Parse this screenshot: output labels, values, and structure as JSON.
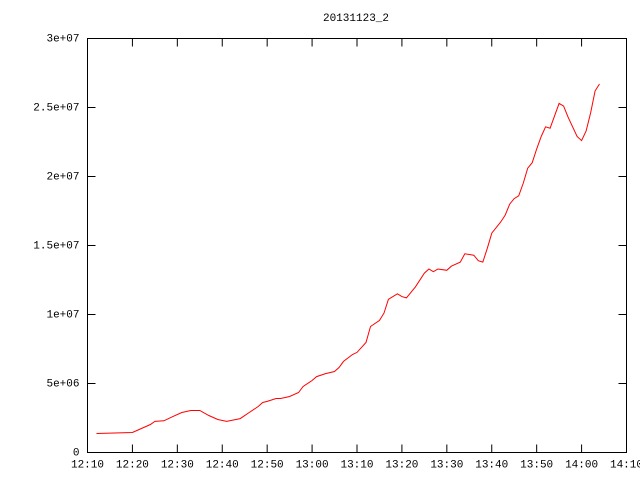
{
  "chart_data": {
    "type": "line",
    "title": "20131123_2",
    "x": [
      "12:12",
      "12:20",
      "12:22",
      "12:24",
      "12:25",
      "12:27",
      "12:29",
      "12:31",
      "12:33",
      "12:35",
      "12:37",
      "12:39",
      "12:41",
      "12:44",
      "12:46",
      "12:48",
      "12:49",
      "12:50",
      "12:52",
      "12:53",
      "12:55",
      "12:57",
      "12:58",
      "13:00",
      "13:01",
      "13:03",
      "13:05",
      "13:06",
      "13:07",
      "13:09",
      "13:10",
      "13:12",
      "13:13",
      "13:15",
      "13:16",
      "13:17",
      "13:19",
      "13:20",
      "13:21",
      "13:23",
      "13:25",
      "13:26",
      "13:27",
      "13:28",
      "13:30",
      "13:31",
      "13:33",
      "13:34",
      "13:36",
      "13:37",
      "13:38",
      "13:39",
      "13:40",
      "13:42",
      "13:43",
      "13:44",
      "13:45",
      "13:46",
      "13:47",
      "13:48",
      "13:49",
      "13:50",
      "13:51",
      "13:52",
      "13:53",
      "13:54",
      "13:55",
      "13:56",
      "13:57",
      "13:58",
      "13:59",
      "14:00",
      "14:01",
      "14:02",
      "14:03",
      "14:04"
    ],
    "series": [
      {
        "color": "#ff0000",
        "values": [
          1380000,
          1450000,
          1740000,
          2030000,
          2250000,
          2300000,
          2600000,
          2900000,
          3040000,
          3040000,
          2680000,
          2390000,
          2250000,
          2460000,
          2900000,
          3330000,
          3620000,
          3700000,
          3910000,
          3910000,
          4060000,
          4350000,
          4780000,
          5220000,
          5500000,
          5720000,
          5870000,
          6160000,
          6600000,
          7100000,
          7250000,
          7970000,
          9130000,
          9570000,
          10100000,
          11100000,
          11500000,
          11300000,
          11200000,
          12000000,
          13000000,
          13300000,
          13100000,
          13300000,
          13200000,
          13500000,
          13800000,
          14400000,
          14300000,
          13900000,
          13800000,
          14800000,
          15900000,
          16700000,
          17200000,
          18000000,
          18400000,
          18600000,
          19500000,
          20600000,
          21000000,
          22000000,
          22900000,
          23600000,
          23500000,
          24400000,
          25300000,
          25100000,
          24300000,
          23600000,
          22900000,
          22600000,
          23300000,
          24600000,
          26200000,
          26700000
        ]
      }
    ],
    "xlim": [
      "12:10",
      "14:10"
    ],
    "xticks": [
      "12:10",
      "12:20",
      "12:30",
      "12:40",
      "12:50",
      "13:00",
      "13:10",
      "13:20",
      "13:30",
      "13:40",
      "13:50",
      "14:00",
      "14:10"
    ],
    "ylim": [
      0,
      30000000
    ],
    "yticks": [
      0,
      {
        "value": 5000000,
        "label": "5e+06"
      },
      {
        "value": 10000000,
        "label": "1e+07"
      },
      {
        "value": 15000000,
        "label": "1.5e+07"
      },
      {
        "value": 20000000,
        "label": "2e+07"
      },
      {
        "value": 25000000,
        "label": "2.5e+07"
      },
      {
        "value": 30000000,
        "label": "3e+07"
      }
    ]
  }
}
